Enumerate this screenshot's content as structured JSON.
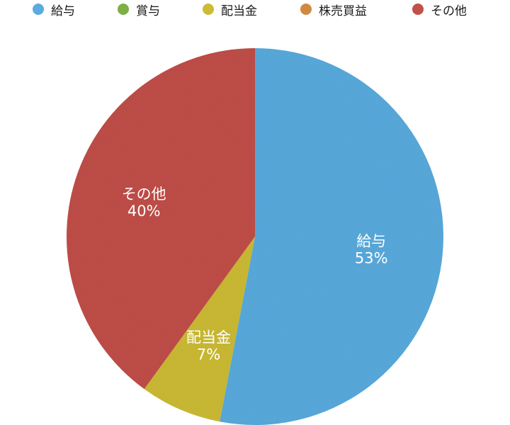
{
  "chart_data": {
    "type": "pie",
    "title": "",
    "legend_position": "top",
    "start_angle_deg": 0,
    "direction": "clockwise",
    "slices": [
      {
        "label": "給与",
        "value": 53,
        "pct_label": "53%",
        "color": "#5AABDE",
        "show_label": true
      },
      {
        "label": "賞与",
        "value": 0,
        "pct_label": "0%",
        "color": "#7DAF44",
        "show_label": false
      },
      {
        "label": "配当金",
        "value": 7,
        "pct_label": "7%",
        "color": "#CCBB35",
        "show_label": true
      },
      {
        "label": "株売買益",
        "value": 0,
        "pct_label": "0%",
        "color": "#D38841",
        "show_label": false
      },
      {
        "label": "その他",
        "value": 40,
        "pct_label": "40%",
        "color": "#C1504A",
        "show_label": true
      }
    ]
  }
}
